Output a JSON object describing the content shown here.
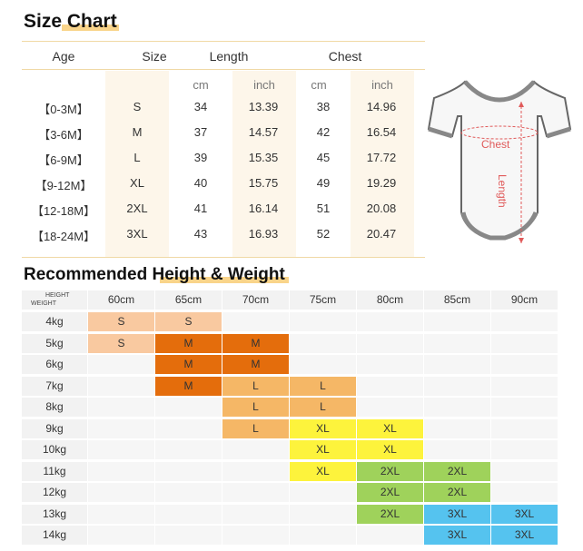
{
  "size_chart": {
    "title": "Size Chart",
    "headers": {
      "age": "Age",
      "size": "Size",
      "length": "Length",
      "chest": "Chest"
    },
    "units": [
      "cm",
      "inch",
      "cm",
      "inch"
    ],
    "rows": [
      {
        "age": "【0-3M】",
        "size": "S",
        "length_cm": "34",
        "length_inch": "13.39",
        "chest_cm": "38",
        "chest_inch": "14.96"
      },
      {
        "age": "【3-6M】",
        "size": "M",
        "length_cm": "37",
        "length_inch": "14.57",
        "chest_cm": "42",
        "chest_inch": "16.54"
      },
      {
        "age": "【6-9M】",
        "size": "L",
        "length_cm": "39",
        "length_inch": "15.35",
        "chest_cm": "45",
        "chest_inch": "17.72"
      },
      {
        "age": "【9-12M】",
        "size": "XL",
        "length_cm": "40",
        "length_inch": "15.75",
        "chest_cm": "49",
        "chest_inch": "19.29"
      },
      {
        "age": "【12-18M】",
        "size": "2XL",
        "length_cm": "41",
        "length_inch": "16.14",
        "chest_cm": "51",
        "chest_inch": "20.08"
      },
      {
        "age": "【18-24M】",
        "size": "3XL",
        "length_cm": "43",
        "length_inch": "16.93",
        "chest_cm": "52",
        "chest_inch": "20.47"
      }
    ]
  },
  "diagram": {
    "chest_label": "Chest",
    "length_label": "Length"
  },
  "hw_chart": {
    "title": "Recommended Height & Weight",
    "corner_height": "HEIGHT",
    "corner_weight": "WEIGHT",
    "heights": [
      "60cm",
      "65cm",
      "70cm",
      "75cm",
      "80cm",
      "85cm",
      "90cm"
    ],
    "rows": [
      {
        "weight": "4kg",
        "cells": [
          "S",
          "S",
          "",
          "",
          "",
          "",
          ""
        ]
      },
      {
        "weight": "5kg",
        "cells": [
          "S",
          "M",
          "M",
          "",
          "",
          "",
          ""
        ]
      },
      {
        "weight": "6kg",
        "cells": [
          "",
          "M",
          "M",
          "",
          "",
          "",
          ""
        ]
      },
      {
        "weight": "7kg",
        "cells": [
          "",
          "M",
          "L",
          "L",
          "",
          "",
          ""
        ]
      },
      {
        "weight": "8kg",
        "cells": [
          "",
          "",
          "L",
          "L",
          "",
          "",
          ""
        ]
      },
      {
        "weight": "9kg",
        "cells": [
          "",
          "",
          "L",
          "XL",
          "XL",
          "",
          ""
        ]
      },
      {
        "weight": "10kg",
        "cells": [
          "",
          "",
          "",
          "XL",
          "XL",
          "",
          ""
        ]
      },
      {
        "weight": "11kg",
        "cells": [
          "",
          "",
          "",
          "XL",
          "2XL",
          "2XL",
          ""
        ]
      },
      {
        "weight": "12kg",
        "cells": [
          "",
          "",
          "",
          "",
          "2XL",
          "2XL",
          ""
        ]
      },
      {
        "weight": "13kg",
        "cells": [
          "",
          "",
          "",
          "",
          "2XL",
          "3XL",
          "3XL"
        ]
      },
      {
        "weight": "14kg",
        "cells": [
          "",
          "",
          "",
          "",
          "",
          "3XL",
          "3XL"
        ]
      }
    ],
    "colors": {
      "S": "#f9c9a0",
      "M": "#e46d0c",
      "L": "#f5b766",
      "XL": "#fdf33c",
      "2XL": "#9fd25b",
      "3XL": "#55c3ef",
      "empty": "#f2f2f2"
    }
  }
}
